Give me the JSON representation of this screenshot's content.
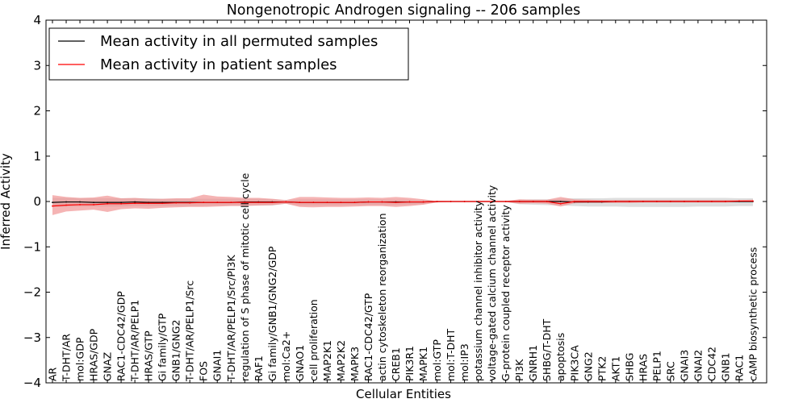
{
  "chart_data": {
    "type": "line",
    "title": "Nongenotropic Androgen signaling -- 206 samples",
    "xlabel": "Cellular Entities",
    "ylabel": "Inferred Activity",
    "ylim": [
      -4,
      4
    ],
    "yticks": [
      -4,
      -3,
      -2,
      -1,
      0,
      1,
      2,
      3,
      4
    ],
    "grid": false,
    "legend_position": "top-left",
    "categories": [
      "AR",
      "T-DHT/AR",
      "mol:GDP",
      "HRAS/GDP",
      "GNAZ",
      "RAC1-CDC42/GDP",
      "T-DHT/AR/PELP1",
      "HRAS/GTP",
      "Gi family/GTP",
      "GNB1/GNG2",
      "T-DHT/AR/PELP1/Src",
      "FOS",
      "GNAI1",
      "T-DHT/AR/PELP1/Src/PI3K",
      "regulation of S phase of mitotic cell cycle",
      "RAF1",
      "Gi family/GNB1/GNG2/GDP",
      "mol:Ca2+",
      "GNAO1",
      "cell proliferation",
      "MAP2K1",
      "MAP2K2",
      "MAPK3",
      "RAC1-CDC42/GTP",
      "actin cytoskeleton reorganization",
      "CREB1",
      "PIK3R1",
      "MAPK1",
      "mol:GTP",
      "mol:T-DHT",
      "mol:IP3",
      "potassium channel inhibitor activity",
      "voltage-gated calcium channel activity",
      "G-protein coupled receptor activity",
      "PI3K",
      "GNRH1",
      "SHBG/T-DHT",
      "apoptosis",
      "PIK3CA",
      "GNG2",
      "PTK2",
      "AKT1",
      "SHBG",
      "HRAS",
      "PELP1",
      "SRC",
      "GNAI3",
      "GNAI2",
      "CDC42",
      "GNB1",
      "RAC1",
      "cAMP biosynthetic process"
    ],
    "series": [
      {
        "name": "Mean activity in all permuted samples",
        "color": "#000000",
        "band_color": "#c8c8c8",
        "values": [
          -0.02,
          -0.01,
          -0.01,
          -0.02,
          -0.02,
          -0.02,
          -0.01,
          -0.02,
          -0.02,
          -0.02,
          -0.02,
          -0.02,
          -0.02,
          -0.02,
          -0.01,
          -0.01,
          -0.01,
          -0.01,
          -0.02,
          -0.02,
          -0.02,
          -0.02,
          -0.02,
          -0.01,
          -0.01,
          -0.01,
          -0.01,
          -0.01,
          0.0,
          0.0,
          0.0,
          0.0,
          0.0,
          0.0,
          0.0,
          0.0,
          0.0,
          0.0,
          -0.01,
          -0.01,
          -0.01,
          0.0,
          0.0,
          0.0,
          0.0,
          0.0,
          0.0,
          0.0,
          0.0,
          0.0,
          0.0,
          0.0
        ],
        "lower": [
          -0.12,
          -0.12,
          -0.11,
          -0.11,
          -0.11,
          -0.11,
          -0.1,
          -0.1,
          -0.1,
          -0.1,
          -0.1,
          -0.1,
          -0.09,
          -0.09,
          -0.09,
          -0.09,
          -0.09,
          -0.05,
          -0.09,
          -0.09,
          -0.09,
          -0.09,
          -0.08,
          -0.08,
          -0.08,
          -0.08,
          -0.07,
          -0.06,
          -0.01,
          -0.01,
          -0.01,
          -0.01,
          -0.01,
          -0.01,
          -0.06,
          -0.07,
          -0.08,
          -0.09,
          -0.1,
          -0.11,
          -0.11,
          -0.11,
          -0.12,
          -0.12,
          -0.12,
          -0.12,
          -0.12,
          -0.11,
          -0.11,
          -0.11,
          -0.1,
          -0.1
        ],
        "upper": [
          0.08,
          0.08,
          0.07,
          0.07,
          0.07,
          0.07,
          0.07,
          0.07,
          0.06,
          0.06,
          0.06,
          0.06,
          0.06,
          0.06,
          0.06,
          0.06,
          0.05,
          0.03,
          0.05,
          0.05,
          0.05,
          0.05,
          0.05,
          0.05,
          0.05,
          0.04,
          0.04,
          0.03,
          0.01,
          0.01,
          0.01,
          0.01,
          0.01,
          0.01,
          0.04,
          0.05,
          0.05,
          0.06,
          0.07,
          0.07,
          0.07,
          0.08,
          0.08,
          0.08,
          0.08,
          0.08,
          0.08,
          0.08,
          0.08,
          0.08,
          0.07,
          0.07
        ]
      },
      {
        "name": "Mean activity in patient samples",
        "color": "#ff0000",
        "band_color": "#f08c8c",
        "values": [
          -0.1,
          -0.08,
          -0.07,
          -0.07,
          -0.05,
          -0.05,
          -0.04,
          -0.04,
          -0.04,
          -0.03,
          -0.03,
          -0.02,
          -0.02,
          -0.02,
          -0.02,
          -0.02,
          -0.02,
          -0.01,
          -0.02,
          -0.02,
          -0.02,
          -0.02,
          -0.02,
          -0.01,
          -0.01,
          -0.02,
          -0.01,
          -0.01,
          0.0,
          0.0,
          0.0,
          0.0,
          0.0,
          0.0,
          0.0,
          0.0,
          0.0,
          -0.05,
          0.0,
          0.0,
          0.0,
          0.0,
          0.0,
          0.0,
          0.0,
          0.0,
          0.0,
          0.0,
          0.0,
          0.0,
          0.01,
          0.01
        ],
        "lower": [
          -0.3,
          -0.22,
          -0.2,
          -0.18,
          -0.23,
          -0.17,
          -0.15,
          -0.16,
          -0.14,
          -0.13,
          -0.12,
          -0.12,
          -0.11,
          -0.1,
          -0.1,
          -0.09,
          -0.08,
          -0.05,
          -0.12,
          -0.13,
          -0.12,
          -0.12,
          -0.11,
          -0.1,
          -0.1,
          -0.12,
          -0.1,
          -0.07,
          -0.02,
          -0.01,
          -0.01,
          -0.01,
          -0.01,
          -0.01,
          -0.05,
          -0.04,
          -0.05,
          -0.11,
          -0.04,
          -0.03,
          -0.03,
          -0.03,
          -0.03,
          -0.02,
          -0.02,
          -0.02,
          -0.02,
          -0.02,
          -0.02,
          -0.02,
          -0.01,
          -0.01
        ],
        "upper": [
          0.14,
          0.1,
          0.08,
          0.09,
          0.13,
          0.07,
          0.08,
          0.06,
          0.06,
          0.07,
          0.07,
          0.15,
          0.11,
          0.1,
          0.08,
          0.08,
          0.06,
          0.03,
          0.1,
          0.1,
          0.09,
          0.08,
          0.08,
          0.09,
          0.08,
          0.1,
          0.08,
          0.05,
          0.01,
          0.01,
          0.01,
          0.01,
          0.01,
          0.01,
          0.05,
          0.04,
          0.04,
          0.1,
          0.05,
          0.04,
          0.03,
          0.03,
          0.03,
          0.03,
          0.03,
          0.03,
          0.03,
          0.03,
          0.03,
          0.03,
          0.03,
          0.04
        ]
      }
    ]
  }
}
